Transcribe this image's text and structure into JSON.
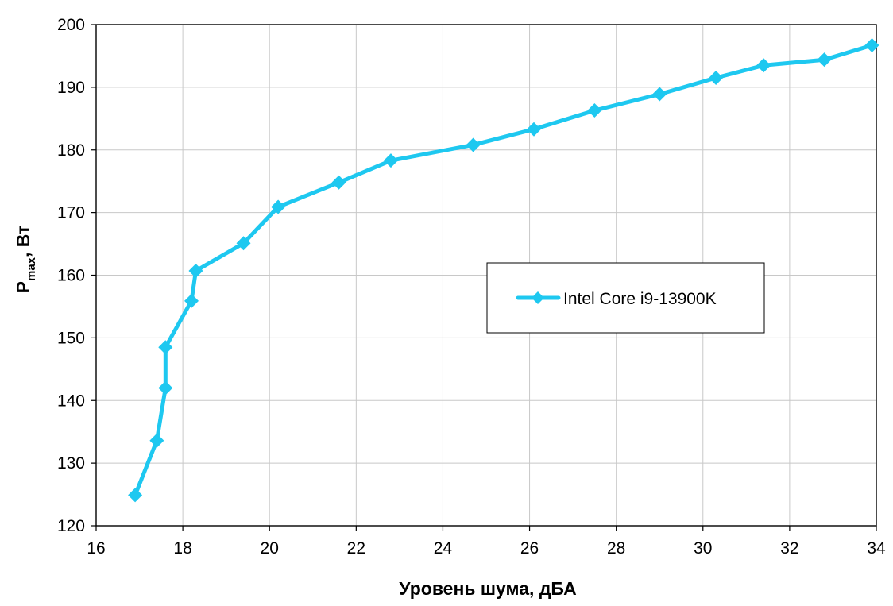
{
  "chart_data": {
    "type": "line",
    "title": "",
    "xlabel": "Уровень шума, дБА",
    "ylabel": {
      "main": "P",
      "sub": "max",
      "suffix": ", Вт"
    },
    "xlim": [
      16,
      34
    ],
    "ylim": [
      120,
      200
    ],
    "x_ticks": [
      16,
      18,
      20,
      22,
      24,
      26,
      28,
      30,
      32,
      34
    ],
    "y_ticks": [
      120,
      130,
      140,
      150,
      160,
      170,
      180,
      190,
      200
    ],
    "grid": true,
    "legend_position": "right",
    "series": [
      {
        "name": "Intel Core i9-13900K",
        "color": "#1ec8f0",
        "marker": "diamond",
        "points": [
          [
            16.9,
            124.9
          ],
          [
            17.4,
            133.6
          ],
          [
            17.6,
            142.0
          ],
          [
            17.6,
            148.5
          ],
          [
            18.2,
            155.9
          ],
          [
            18.3,
            160.7
          ],
          [
            19.4,
            165.1
          ],
          [
            20.2,
            170.9
          ],
          [
            21.6,
            174.8
          ],
          [
            22.8,
            178.3
          ],
          [
            24.7,
            180.8
          ],
          [
            26.1,
            183.3
          ],
          [
            27.5,
            186.3
          ],
          [
            29.0,
            188.9
          ],
          [
            30.3,
            191.5
          ],
          [
            31.4,
            193.5
          ],
          [
            32.8,
            194.4
          ],
          [
            33.9,
            196.7
          ]
        ]
      }
    ]
  }
}
